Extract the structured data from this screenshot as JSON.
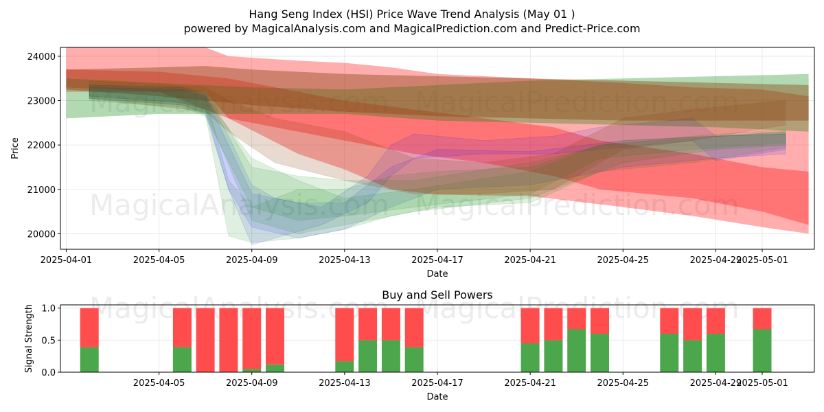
{
  "figure": {
    "title_line1": "Hang Seng Index (HSI) Price Wave Trend Analysis (May 01 )",
    "title_line2": "powered by MagicalAnalysis.com and MagicalPrediction.com and Predict-Price.com",
    "watermarks": [
      "MagicalAnalysis.com",
      "MagicalPrediction.com"
    ]
  },
  "chart_data": [
    {
      "type": "area",
      "xlabel": "Date",
      "ylabel": "Price",
      "ylim": [
        19650,
        24200
      ],
      "xlim": [
        "2025-03-31T18:00",
        "2025-05-03T06:00"
      ],
      "grid": true,
      "x_ticks": [
        "2025-04-01",
        "2025-04-05",
        "2025-04-09",
        "2025-04-13",
        "2025-04-17",
        "2025-04-21",
        "2025-04-25",
        "2025-04-29",
        "2025-05-01"
      ],
      "y_ticks": [
        20000,
        21000,
        22000,
        23000,
        24000
      ],
      "colors": {
        "red": "#ff0000",
        "green": "#008000",
        "blue": "#0000ff",
        "brown": "#8b4513"
      },
      "bands": [
        {
          "color": "red",
          "opacity": 0.32,
          "x": [
            "2025-04-01",
            "2025-04-07",
            "2025-04-08",
            "2025-04-11",
            "2025-04-13",
            "2025-04-15",
            "2025-04-17",
            "2025-04-21",
            "2025-04-25",
            "2025-04-28",
            "2025-05-01",
            "2025-05-03"
          ],
          "low": [
            23200,
            23200,
            22600,
            21800,
            21450,
            21000,
            20880,
            20850,
            20600,
            20400,
            20150,
            20000
          ],
          "high": [
            24200,
            24200,
            24000,
            23900,
            23850,
            23750,
            23600,
            23500,
            23400,
            23300,
            23250,
            23100
          ]
        },
        {
          "color": "red",
          "opacity": 0.32,
          "x": [
            "2025-04-01",
            "2025-04-05",
            "2025-04-08",
            "2025-04-11",
            "2025-04-13",
            "2025-04-16",
            "2025-04-19",
            "2025-04-22",
            "2025-04-24",
            "2025-04-28",
            "2025-05-01",
            "2025-05-03"
          ],
          "low": [
            23300,
            23200,
            22600,
            22300,
            22100,
            21800,
            21600,
            21300,
            21000,
            20800,
            20500,
            20200
          ],
          "high": [
            23700,
            23650,
            23500,
            23200,
            23000,
            22800,
            22600,
            22400,
            22100,
            21800,
            21500,
            21400
          ]
        },
        {
          "color": "green",
          "opacity": 0.3,
          "x": [
            "2025-04-01",
            "2025-04-05",
            "2025-04-09",
            "2025-04-13",
            "2025-04-17",
            "2025-04-21",
            "2025-04-25",
            "2025-04-29",
            "2025-05-03"
          ],
          "low": [
            22600,
            22700,
            22700,
            22700,
            22550,
            22500,
            22450,
            22400,
            22300
          ],
          "high": [
            23500,
            23400,
            23300,
            23250,
            23350,
            23450,
            23500,
            23550,
            23600
          ]
        },
        {
          "color": "brown",
          "opacity": 0.42,
          "x": [
            "2025-04-01",
            "2025-04-05",
            "2025-04-07",
            "2025-04-09",
            "2025-04-13",
            "2025-04-17",
            "2025-04-21",
            "2025-04-25",
            "2025-04-29",
            "2025-05-03"
          ],
          "low": [
            23250,
            23100,
            23000,
            22900,
            22750,
            22650,
            22600,
            22550,
            22550,
            22550
          ],
          "high": [
            23700,
            23750,
            23780,
            23700,
            23600,
            23550,
            23500,
            23450,
            23400,
            23350
          ]
        }
      ],
      "fan_bands": [
        {
          "color": "blue",
          "opacity": 0.1,
          "x": [
            "2025-04-02",
            "2025-04-06",
            "2025-04-07",
            "2025-04-08",
            "2025-04-09",
            "2025-04-10",
            "2025-04-12",
            "2025-04-14",
            "2025-04-15",
            "2025-04-16",
            "2025-04-19",
            "2025-04-22",
            "2025-04-24",
            "2025-04-28",
            "2025-04-29",
            "2025-05-02"
          ],
          "low": [
            23100,
            22950,
            22800,
            21000,
            19750,
            19900,
            20200,
            20700,
            21300,
            21700,
            21800,
            21800,
            21900,
            22100,
            21650,
            21900
          ],
          "high": [
            23350,
            23300,
            23150,
            22200,
            21100,
            20800,
            20600,
            21300,
            22000,
            22250,
            22100,
            22200,
            22400,
            22600,
            22200,
            22250
          ]
        },
        {
          "color": "blue",
          "opacity": 0.1,
          "x": [
            "2025-04-02",
            "2025-04-06",
            "2025-04-07",
            "2025-04-08",
            "2025-04-09",
            "2025-04-11",
            "2025-04-13",
            "2025-04-15",
            "2025-04-17",
            "2025-04-21",
            "2025-04-25",
            "2025-04-29",
            "2025-05-02"
          ],
          "low": [
            23050,
            22900,
            22700,
            21000,
            20150,
            19900,
            20100,
            20600,
            21000,
            21100,
            21500,
            21700,
            21800
          ],
          "high": [
            23300,
            23250,
            23100,
            22000,
            20900,
            20700,
            20700,
            21500,
            21900,
            21850,
            22100,
            22200,
            22250
          ]
        },
        {
          "color": "green",
          "opacity": 0.12,
          "x": [
            "2025-04-02",
            "2025-04-06",
            "2025-04-07",
            "2025-04-08",
            "2025-04-09",
            "2025-04-11",
            "2025-04-13",
            "2025-04-15",
            "2025-04-17",
            "2025-04-21",
            "2025-04-24",
            "2025-04-28",
            "2025-05-02"
          ],
          "low": [
            23050,
            22900,
            22700,
            19950,
            19800,
            19900,
            20100,
            20400,
            20600,
            20700,
            21400,
            21600,
            21950
          ],
          "high": [
            23300,
            23250,
            23100,
            21200,
            20600,
            21000,
            21000,
            21300,
            21400,
            21500,
            22000,
            22150,
            22300
          ]
        },
        {
          "color": "green",
          "opacity": 0.12,
          "x": [
            "2025-04-02",
            "2025-04-06",
            "2025-04-07",
            "2025-04-09",
            "2025-04-11",
            "2025-04-13",
            "2025-04-16",
            "2025-04-21",
            "2025-04-25",
            "2025-04-29",
            "2025-05-02"
          ],
          "low": [
            23100,
            22950,
            22800,
            20300,
            20000,
            20200,
            20500,
            20800,
            21600,
            21900,
            22000
          ],
          "high": [
            23350,
            23300,
            23200,
            21500,
            21300,
            21200,
            21200,
            21600,
            22100,
            22200,
            22300
          ]
        },
        {
          "color": "green",
          "opacity": 0.12,
          "x": [
            "2025-04-02",
            "2025-04-06",
            "2025-04-07",
            "2025-04-09",
            "2025-04-11",
            "2025-04-13",
            "2025-04-16",
            "2025-04-21",
            "2025-04-24",
            "2025-04-28",
            "2025-05-02"
          ],
          "low": [
            23000,
            22850,
            22650,
            20600,
            20300,
            20400,
            20600,
            20900,
            21700,
            21900,
            22050
          ],
          "high": [
            23250,
            23200,
            23050,
            21700,
            21200,
            20800,
            21000,
            21400,
            22000,
            22200,
            22350
          ]
        },
        {
          "color": "brown",
          "opacity": 0.2,
          "x": [
            "2025-04-02",
            "2025-04-07",
            "2025-04-08",
            "2025-04-10",
            "2025-04-13",
            "2025-04-16",
            "2025-04-19",
            "2025-04-22",
            "2025-04-25",
            "2025-04-28",
            "2025-05-02"
          ],
          "low": [
            23050,
            22750,
            22300,
            21600,
            21200,
            20900,
            20900,
            21000,
            21900,
            22100,
            22450
          ],
          "high": [
            23450,
            23300,
            23000,
            22600,
            22300,
            21700,
            21600,
            21800,
            22600,
            22800,
            23000
          ]
        }
      ]
    },
    {
      "type": "bar",
      "title": "Buy and Sell Powers",
      "xlabel": "Date",
      "ylabel": "Signal Strength",
      "ylim": [
        0,
        1.05
      ],
      "y_ticks": [
        0.0,
        0.5,
        1.0
      ],
      "y_tick_labels": [
        "0.0",
        "0.5",
        "1.0"
      ],
      "x_ticks": [
        "2025-04-05",
        "2025-04-09",
        "2025-04-13",
        "2025-04-17",
        "2025-04-21",
        "2025-04-25",
        "2025-04-29",
        "2025-05-01"
      ],
      "buy_color": "#4ca64c",
      "sell_color": "#ff4c4c",
      "dates": [
        "2025-04-02",
        "2025-04-06",
        "2025-04-07",
        "2025-04-08",
        "2025-04-09",
        "2025-04-10",
        "2025-04-13",
        "2025-04-14",
        "2025-04-15",
        "2025-04-16",
        "2025-04-21",
        "2025-04-22",
        "2025-04-23",
        "2025-04-24",
        "2025-04-27",
        "2025-04-28",
        "2025-04-29",
        "2025-05-01"
      ],
      "buy": [
        0.39,
        0.39,
        0.0,
        0.0,
        0.05,
        0.12,
        0.17,
        0.5,
        0.5,
        0.39,
        0.45,
        0.5,
        0.67,
        0.6,
        0.6,
        0.5,
        0.6,
        0.67
      ],
      "sell": [
        0.61,
        0.61,
        1.0,
        1.0,
        0.95,
        0.88,
        0.83,
        0.5,
        0.5,
        0.61,
        0.55,
        0.5,
        0.33,
        0.4,
        0.4,
        0.5,
        0.4,
        0.33
      ]
    }
  ]
}
